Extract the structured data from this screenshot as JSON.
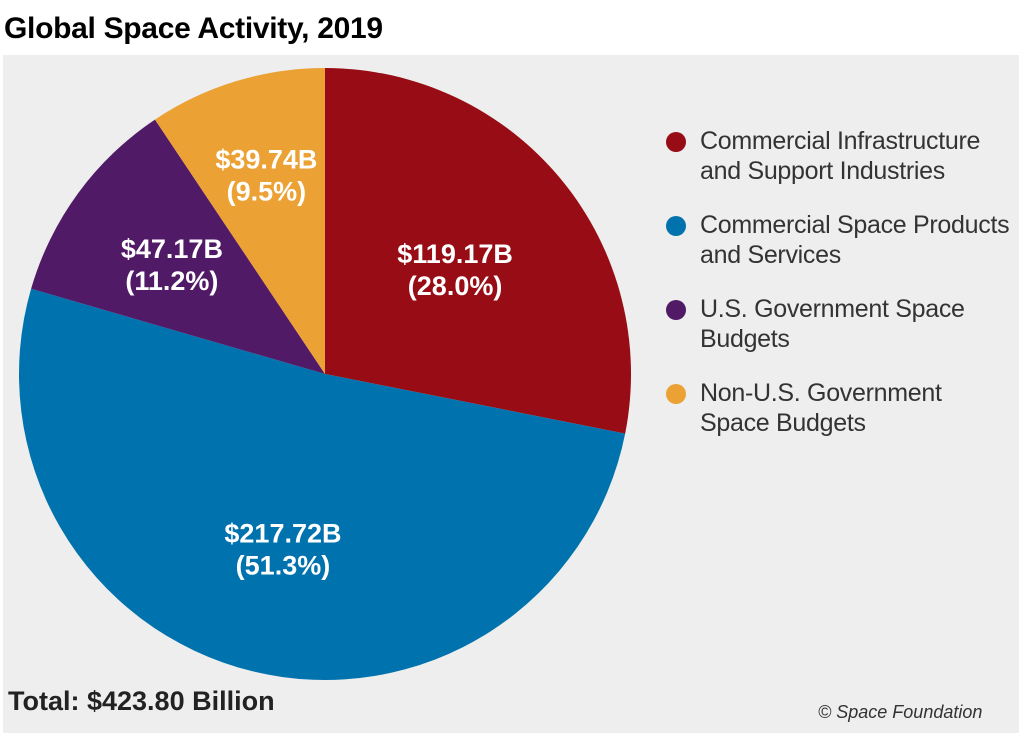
{
  "chart_data": {
    "type": "pie",
    "title": "Global Space Activity, 2019",
    "start_angle": "12 o'clock, clockwise",
    "slices": [
      {
        "name": "Commercial Infrastructure and Support Industries",
        "value": 119.17,
        "value_label": "$119.17B",
        "percent": 28.0,
        "percent_label": "(28.0%)",
        "color": "#970c15"
      },
      {
        "name": "Commercial Space Products and Services",
        "value": 217.72,
        "value_label": "$217.72B",
        "percent": 51.3,
        "percent_label": "(51.3%)",
        "color": "#0072ae"
      },
      {
        "name": "U.S. Government Space Budgets",
        "value": 47.17,
        "value_label": "$47.17B",
        "percent": 11.2,
        "percent_label": "(11.2%)",
        "color": "#511a67"
      },
      {
        "name": "Non-U.S. Government Space Budgets",
        "value": 39.74,
        "value_label": "$39.74B",
        "percent": 9.5,
        "percent_label": "(9.5%)",
        "color": "#eba134"
      }
    ],
    "legend": {
      "placement": "right",
      "entries": [
        [
          "Commercial Infrastructure",
          "and Support Industries"
        ],
        [
          "Commercial Space Products",
          "and Services"
        ],
        [
          "U.S. Government Space",
          "Budgets"
        ],
        [
          "Non-U.S. Government",
          "Space Budgets"
        ]
      ]
    },
    "total": "Total: $423.80 Billion",
    "credit": "© Space Foundation"
  }
}
